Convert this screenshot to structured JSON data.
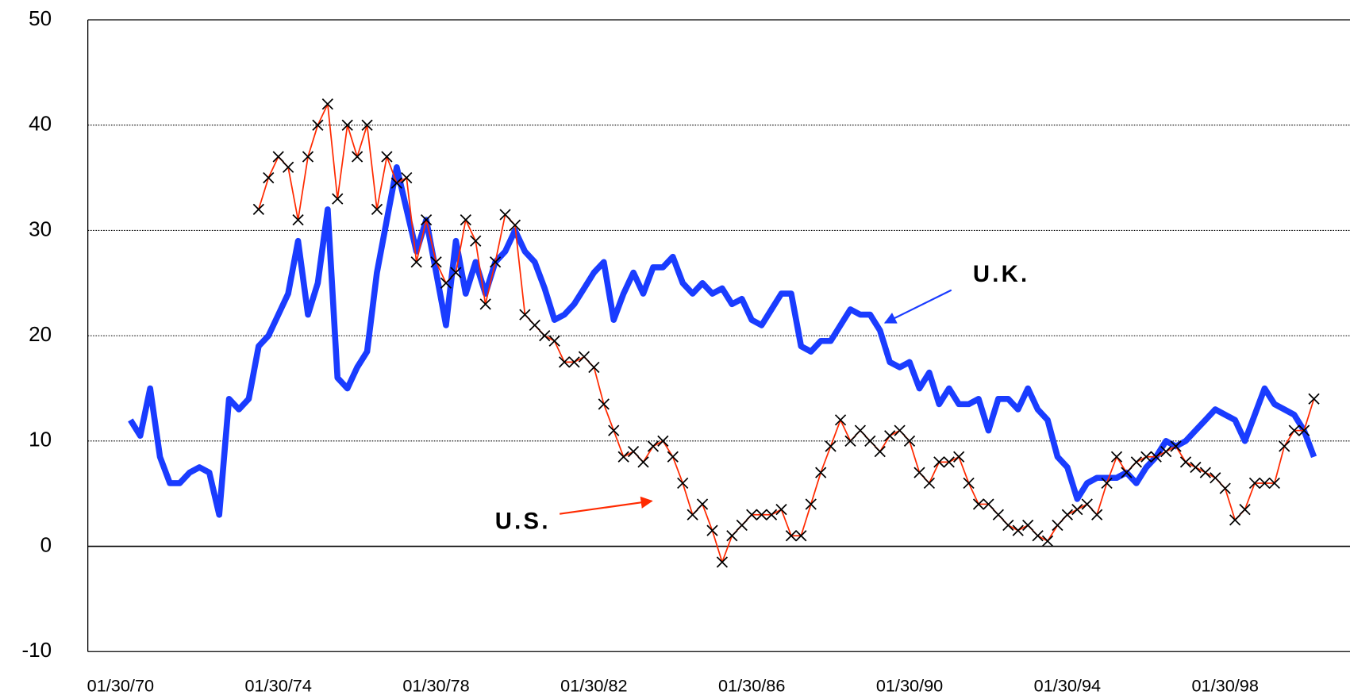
{
  "chart_data": {
    "type": "line",
    "x": [
      "04/30/70",
      "07/30/70",
      "10/30/70",
      "01/30/71",
      "04/30/71",
      "07/30/71",
      "10/30/71",
      "01/30/72",
      "04/30/72",
      "07/30/72",
      "10/30/72",
      "01/30/73",
      "04/30/73",
      "07/30/73",
      "10/30/73",
      "01/30/74",
      "04/30/74",
      "07/30/74",
      "10/30/74",
      "01/30/75",
      "04/30/75",
      "07/30/75",
      "10/30/75",
      "01/30/76",
      "04/30/76",
      "07/30/76",
      "10/30/76",
      "01/30/77",
      "04/30/77",
      "07/30/77",
      "10/30/77",
      "01/30/78",
      "04/30/78",
      "07/30/78",
      "10/30/78",
      "01/30/79",
      "04/30/79",
      "07/30/79",
      "10/30/79",
      "01/30/80",
      "04/30/80",
      "07/30/80",
      "10/30/80",
      "01/30/81",
      "04/30/81",
      "07/30/81",
      "10/30/81",
      "01/30/82",
      "04/30/82",
      "07/30/82",
      "10/30/82",
      "01/30/83",
      "04/30/83",
      "07/30/83",
      "10/30/83",
      "01/30/84",
      "04/30/84",
      "07/30/84",
      "10/30/84",
      "01/30/85",
      "04/30/85",
      "07/30/85",
      "10/30/85",
      "01/30/86",
      "04/30/86",
      "07/30/86",
      "10/30/86",
      "01/30/87",
      "04/30/87",
      "07/30/87",
      "10/30/87",
      "01/30/88",
      "04/30/88",
      "07/30/88",
      "10/30/88",
      "01/30/89",
      "04/30/89",
      "07/30/89",
      "10/30/89",
      "01/30/90",
      "04/30/90",
      "07/30/90",
      "10/30/90",
      "01/30/91",
      "04/30/91",
      "07/30/91",
      "10/30/91",
      "01/30/92",
      "04/30/92",
      "07/30/92",
      "10/30/92",
      "01/30/93",
      "04/30/93",
      "07/30/93",
      "10/30/93",
      "01/30/94",
      "04/30/94",
      "07/30/94",
      "10/30/94",
      "01/30/95",
      "04/30/95",
      "07/30/95",
      "10/30/95",
      "01/30/96",
      "04/30/96",
      "07/30/96",
      "10/30/96",
      "01/30/97",
      "04/30/97",
      "07/30/97",
      "10/30/97",
      "01/30/98",
      "04/30/98",
      "07/30/98",
      "10/30/98",
      "01/30/99",
      "04/30/99",
      "07/30/99",
      "10/30/99",
      "01/30/00",
      "04/30/00"
    ],
    "series": [
      {
        "name": "U.K.",
        "color": "#1a3cff",
        "values": [
          12,
          10.5,
          15,
          8.5,
          6,
          6,
          7,
          7.5,
          7,
          3,
          14,
          13,
          14,
          19,
          20,
          22,
          24,
          29,
          22,
          25,
          32,
          16,
          15,
          17,
          18.5,
          26,
          31,
          36,
          32,
          28,
          31,
          26,
          21,
          29,
          24,
          27,
          24,
          27,
          28,
          30,
          28,
          27,
          24.5,
          21.5,
          22,
          23,
          24.5,
          26,
          27,
          21.5,
          24,
          26,
          24,
          26.5,
          26.5,
          27.5,
          25,
          24,
          25,
          24,
          24.5,
          23,
          23.5,
          21.5,
          21,
          22.5,
          24,
          24,
          19,
          18.5,
          19.5,
          19.5,
          21,
          22.5,
          22,
          22,
          20.5,
          17.5,
          17,
          17.5,
          15,
          16.5,
          13.5,
          15,
          13.5,
          13.5,
          14,
          11,
          14,
          14,
          13,
          15,
          13,
          12,
          8.5,
          7.5,
          4.5,
          6,
          6.5,
          6.5,
          6.5,
          7,
          6,
          7.5,
          8.5,
          10,
          9.5,
          10,
          11,
          12,
          13,
          12.5,
          12,
          10,
          12.5,
          15,
          13.5,
          13,
          12.5,
          11,
          8.5
        ]
      },
      {
        "name": "U.S.",
        "color": "#ff2a00",
        "marker_color": "#000000",
        "values": [
          null,
          null,
          null,
          null,
          null,
          null,
          null,
          null,
          null,
          null,
          null,
          null,
          null,
          32,
          35,
          37,
          36,
          31,
          37,
          40,
          42,
          33,
          40,
          37,
          40,
          32,
          37,
          34.5,
          35,
          27,
          31,
          27,
          25,
          26,
          31,
          29,
          23,
          27,
          31.5,
          30.5,
          22,
          21,
          20,
          19.5,
          17.5,
          17.5,
          18,
          17,
          13.5,
          11,
          8.5,
          9,
          8,
          9.5,
          10,
          8.5,
          6,
          3,
          4,
          1.5,
          -1.5,
          1,
          2,
          3,
          3,
          3,
          3.5,
          1,
          1,
          4,
          7,
          9.5,
          12,
          10,
          11,
          10,
          9,
          10.5,
          11,
          10,
          7,
          6,
          8,
          8,
          8.5,
          6,
          4,
          4,
          3,
          2,
          1.5,
          2,
          1,
          0.5,
          2,
          3,
          3.5,
          4,
          3,
          6,
          8.5,
          7,
          8,
          8.5,
          8.5,
          9,
          9.5,
          8,
          7.5,
          7,
          6.5,
          5.5,
          2.5,
          3.5,
          6,
          6,
          6,
          9.5,
          11,
          11,
          14
        ]
      }
    ],
    "annotations": [
      "U.K.",
      "U.S."
    ],
    "xticks": [
      "01/30/70",
      "01/30/74",
      "01/30/78",
      "01/30/82",
      "01/30/86",
      "01/30/90",
      "01/30/94",
      "01/30/98"
    ],
    "ylim": [
      -10,
      50
    ],
    "yticks": [
      -10,
      0,
      10,
      20,
      30,
      40,
      50
    ],
    "grid": true
  }
}
